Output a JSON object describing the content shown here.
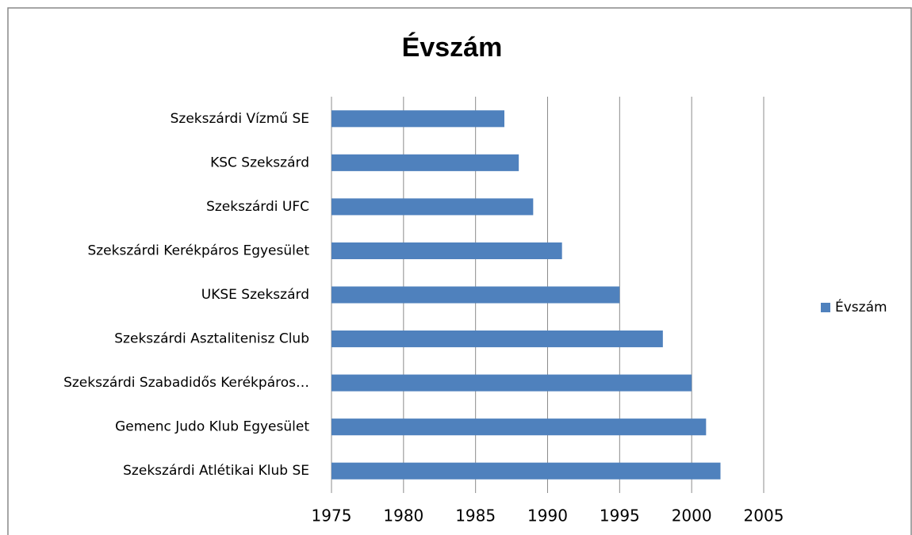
{
  "chart_data": {
    "type": "bar",
    "orientation": "horizontal",
    "title": "Évszám",
    "categories": [
      "Szekszárdi Vízmű SE",
      "KSC Szekszárd",
      "Szekszárdi UFC",
      "Szekszárdi Kerékpáros Egyesület",
      "UKSE Szekszárd",
      "Szekszárdi Asztalitenisz Club",
      "Szekszárdi Szabadidős Kerékpáros…",
      "Gemenc Judo Klub Egyesület",
      "Szekszárdi Atlétikai Klub SE"
    ],
    "series": [
      {
        "name": "Évszám",
        "color": "#4f81bd",
        "values": [
          1987,
          1988,
          1989,
          1991,
          1995,
          1998,
          2000,
          2001,
          2002
        ]
      }
    ],
    "xlim": [
      1975,
      2005
    ],
    "xticks": [
      1975,
      1980,
      1985,
      1990,
      1995,
      2000,
      2005
    ],
    "grid": true,
    "legend": "right"
  }
}
